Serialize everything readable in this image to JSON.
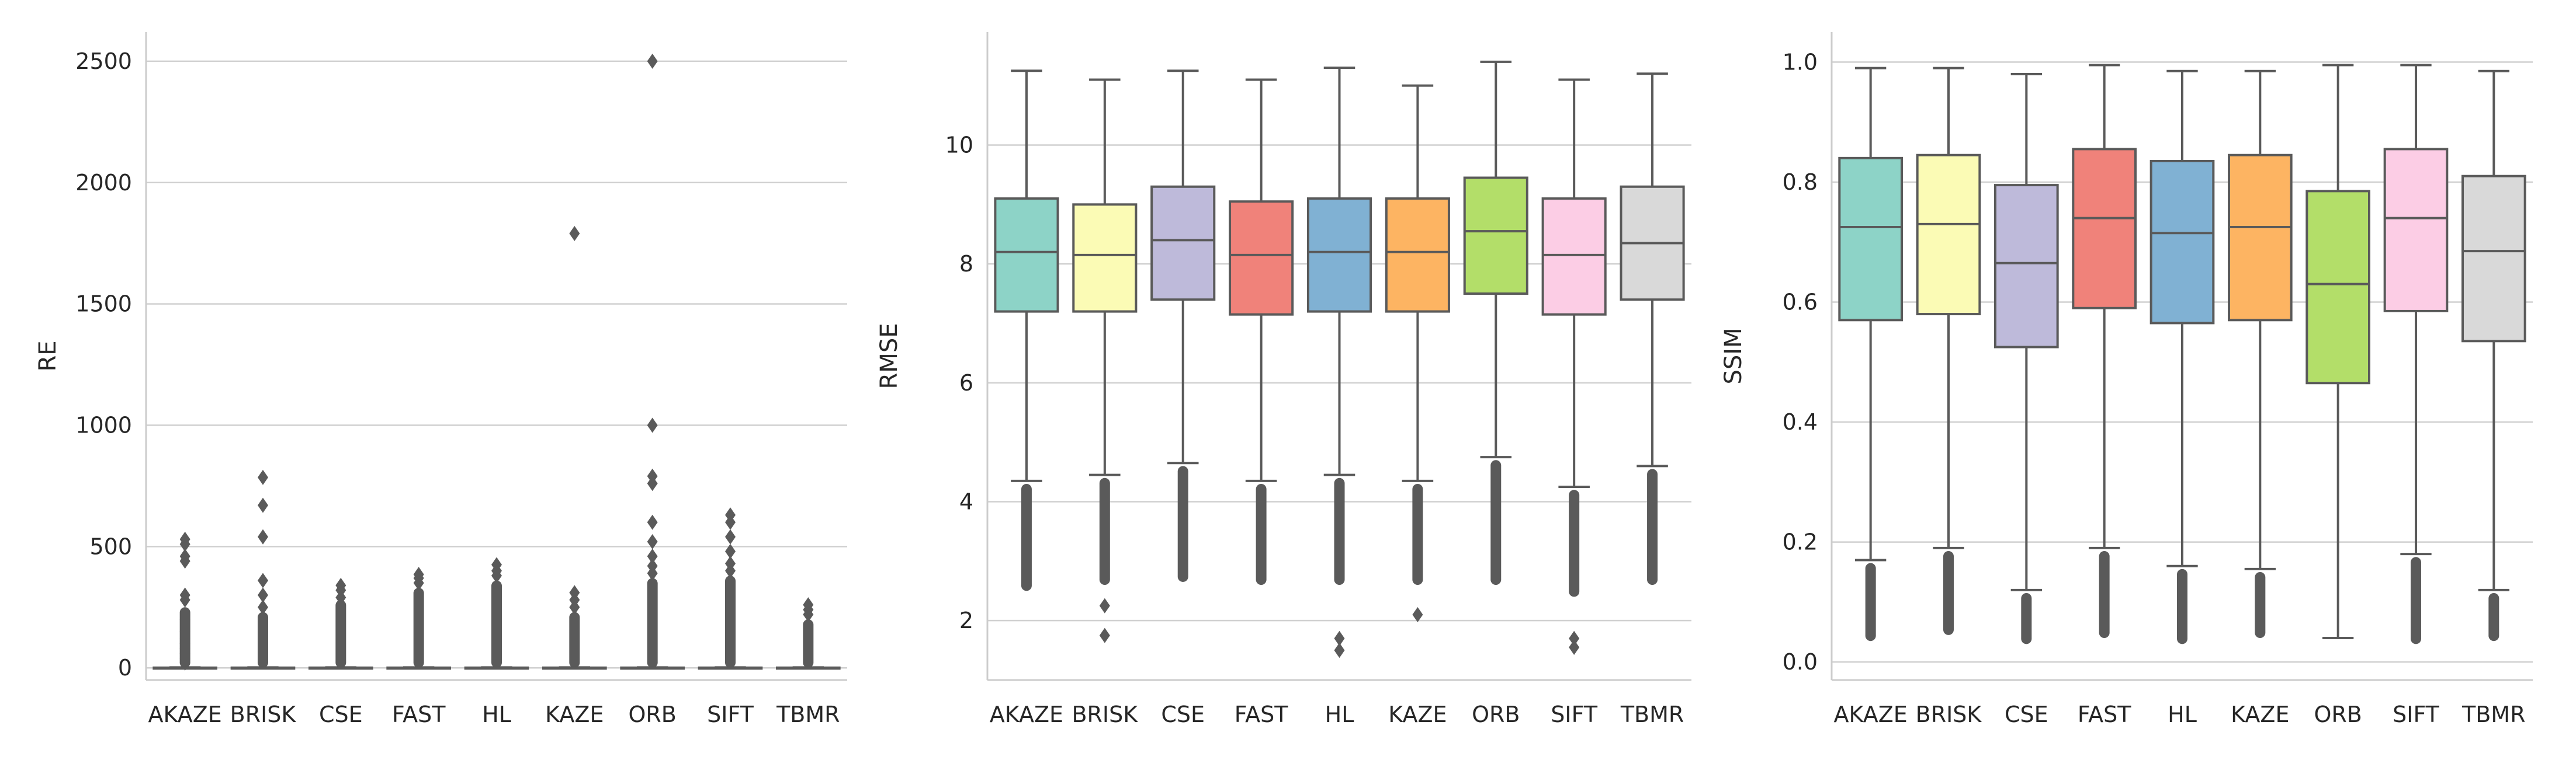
{
  "colors": {
    "palette": [
      "#8dd3c7",
      "#fbfbb5",
      "#bebada",
      "#f0827a",
      "#80b1d3",
      "#fdb462",
      "#b3de69",
      "#fccde5",
      "#d9d9d9"
    ],
    "line": "#5a5a5a",
    "grid": "#d0d0d0",
    "spine": "#cccccc"
  },
  "chart_data": [
    {
      "type": "box",
      "title": "",
      "xlabel": "",
      "ylabel": "RE",
      "ylim": [
        -50,
        2620
      ],
      "yticks": [
        0,
        500,
        1000,
        1500,
        2000,
        2500
      ],
      "grid": "horizontal",
      "categories": [
        "AKAZE",
        "BRISK",
        "CSE",
        "FAST",
        "HL",
        "KAZE",
        "ORB",
        "SIFT",
        "TBMR"
      ],
      "boxes": [
        {
          "q1": 0,
          "median": 0,
          "q3": 1,
          "whisker_low": 0,
          "whisker_high": 2,
          "outliers": [
            530,
            510,
            460,
            440,
            300,
            280,
            200,
            150,
            120,
            100,
            80,
            60,
            40,
            20
          ],
          "outlier_range": [
            0,
            250
          ]
        },
        {
          "q1": 0,
          "median": 0,
          "q3": 1,
          "whisker_low": 0,
          "whisker_high": 2,
          "outliers": [
            785,
            670,
            540,
            360,
            300,
            250
          ],
          "outlier_range": [
            0,
            230
          ]
        },
        {
          "q1": 0,
          "median": 0,
          "q3": 1,
          "whisker_low": 0,
          "whisker_high": 2,
          "outliers": [
            340,
            320,
            290
          ],
          "outlier_range": [
            0,
            280
          ]
        },
        {
          "q1": 0,
          "median": 0,
          "q3": 1,
          "whisker_low": 0,
          "whisker_high": 2,
          "outliers": [
            385,
            370,
            350
          ],
          "outlier_range": [
            0,
            330
          ]
        },
        {
          "q1": 0,
          "median": 0,
          "q3": 1,
          "whisker_low": 0,
          "whisker_high": 2,
          "outliers": [
            425,
            400,
            380
          ],
          "outlier_range": [
            0,
            360
          ]
        },
        {
          "q1": 0,
          "median": 0,
          "q3": 1,
          "whisker_low": 0,
          "whisker_high": 2,
          "outliers": [
            1790,
            310,
            280,
            250
          ],
          "outlier_range": [
            0,
            230
          ]
        },
        {
          "q1": 0,
          "median": 0,
          "q3": 1,
          "whisker_low": 0,
          "whisker_high": 2,
          "outliers": [
            2500,
            1000,
            790,
            760,
            600,
            520,
            460,
            420,
            390
          ],
          "outlier_range": [
            0,
            370
          ]
        },
        {
          "q1": 0,
          "median": 0,
          "q3": 1,
          "whisker_low": 0,
          "whisker_high": 2,
          "outliers": [
            630,
            600,
            540,
            480,
            430,
            400
          ],
          "outlier_range": [
            0,
            380
          ]
        },
        {
          "q1": 0,
          "median": 0,
          "q3": 1,
          "whisker_low": 0,
          "whisker_high": 2,
          "outliers": [
            260,
            240,
            220
          ],
          "outlier_range": [
            0,
            200
          ]
        }
      ]
    },
    {
      "type": "box",
      "title": "",
      "xlabel": "",
      "ylabel": "RMSE",
      "ylim": [
        1.0,
        11.9
      ],
      "yticks": [
        2,
        4,
        6,
        8,
        10
      ],
      "grid": "horizontal",
      "categories": [
        "AKAZE",
        "BRISK",
        "CSE",
        "FAST",
        "HL",
        "KAZE",
        "ORB",
        "SIFT",
        "TBMR"
      ],
      "boxes": [
        {
          "q1": 7.2,
          "median": 8.2,
          "q3": 9.1,
          "whisker_low": 4.35,
          "whisker_high": 11.25,
          "outliers": [],
          "outlier_range": [
            2.5,
            4.3
          ]
        },
        {
          "q1": 7.2,
          "median": 8.15,
          "q3": 9.0,
          "whisker_low": 4.45,
          "whisker_high": 11.1,
          "outliers": [
            2.25,
            1.75
          ],
          "outlier_range": [
            2.6,
            4.4
          ]
        },
        {
          "q1": 7.4,
          "median": 8.4,
          "q3": 9.3,
          "whisker_low": 4.65,
          "whisker_high": 11.25,
          "outliers": [],
          "outlier_range": [
            2.65,
            4.6
          ]
        },
        {
          "q1": 7.15,
          "median": 8.15,
          "q3": 9.05,
          "whisker_low": 4.35,
          "whisker_high": 11.1,
          "outliers": [],
          "outlier_range": [
            2.6,
            4.3
          ]
        },
        {
          "q1": 7.2,
          "median": 8.2,
          "q3": 9.1,
          "whisker_low": 4.45,
          "whisker_high": 11.3,
          "outliers": [
            1.7,
            1.5
          ],
          "outlier_range": [
            2.6,
            4.4
          ]
        },
        {
          "q1": 7.2,
          "median": 8.2,
          "q3": 9.1,
          "whisker_low": 4.35,
          "whisker_high": 11.0,
          "outliers": [
            2.1
          ],
          "outlier_range": [
            2.6,
            4.3
          ]
        },
        {
          "q1": 7.5,
          "median": 8.55,
          "q3": 9.45,
          "whisker_low": 4.75,
          "whisker_high": 11.4,
          "outliers": [],
          "outlier_range": [
            2.6,
            4.7
          ]
        },
        {
          "q1": 7.15,
          "median": 8.15,
          "q3": 9.1,
          "whisker_low": 4.25,
          "whisker_high": 11.1,
          "outliers": [
            1.7,
            1.55
          ],
          "outlier_range": [
            2.4,
            4.2
          ]
        },
        {
          "q1": 7.4,
          "median": 8.35,
          "q3": 9.3,
          "whisker_low": 4.6,
          "whisker_high": 11.2,
          "outliers": [],
          "outlier_range": [
            2.6,
            4.55
          ]
        }
      ]
    },
    {
      "type": "box",
      "title": "",
      "xlabel": "",
      "ylabel": "SSIM",
      "ylim": [
        -0.03,
        1.05
      ],
      "yticks": [
        "0.0",
        "0.2",
        "0.4",
        "0.6",
        "0.8",
        "1.0"
      ],
      "grid": "horizontal",
      "categories": [
        "AKAZE",
        "BRISK",
        "CSE",
        "FAST",
        "HL",
        "KAZE",
        "ORB",
        "SIFT",
        "TBMR"
      ],
      "boxes": [
        {
          "q1": 0.57,
          "median": 0.725,
          "q3": 0.84,
          "whisker_low": 0.17,
          "whisker_high": 0.99,
          "outliers": [],
          "outlier_range": [
            0.035,
            0.165
          ]
        },
        {
          "q1": 0.58,
          "median": 0.73,
          "q3": 0.845,
          "whisker_low": 0.19,
          "whisker_high": 0.99,
          "outliers": [],
          "outlier_range": [
            0.045,
            0.185
          ]
        },
        {
          "q1": 0.525,
          "median": 0.665,
          "q3": 0.795,
          "whisker_low": 0.12,
          "whisker_high": 0.98,
          "outliers": [],
          "outlier_range": [
            0.03,
            0.115
          ]
        },
        {
          "q1": 0.59,
          "median": 0.74,
          "q3": 0.855,
          "whisker_low": 0.19,
          "whisker_high": 0.995,
          "outliers": [],
          "outlier_range": [
            0.04,
            0.185
          ]
        },
        {
          "q1": 0.565,
          "median": 0.715,
          "q3": 0.835,
          "whisker_low": 0.16,
          "whisker_high": 0.985,
          "outliers": [],
          "outlier_range": [
            0.03,
            0.155
          ]
        },
        {
          "q1": 0.57,
          "median": 0.725,
          "q3": 0.845,
          "whisker_low": 0.155,
          "whisker_high": 0.985,
          "outliers": [],
          "outlier_range": [
            0.04,
            0.15
          ]
        },
        {
          "q1": 0.465,
          "median": 0.63,
          "q3": 0.785,
          "whisker_low": 0.04,
          "whisker_high": 0.995,
          "outliers": [],
          "outlier_range": null
        },
        {
          "q1": 0.585,
          "median": 0.74,
          "q3": 0.855,
          "whisker_low": 0.18,
          "whisker_high": 0.995,
          "outliers": [],
          "outlier_range": [
            0.03,
            0.175
          ]
        },
        {
          "q1": 0.535,
          "median": 0.685,
          "q3": 0.81,
          "whisker_low": 0.12,
          "whisker_high": 0.985,
          "outliers": [],
          "outlier_range": [
            0.035,
            0.115
          ]
        }
      ]
    }
  ]
}
